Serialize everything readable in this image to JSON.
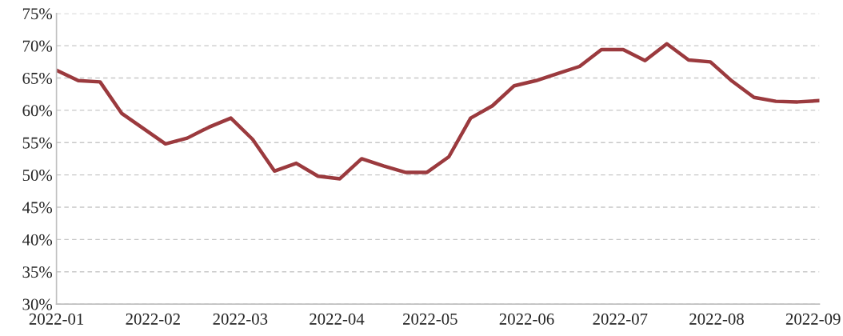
{
  "chart_data": {
    "type": "line",
    "x": [
      "2022-01-01",
      "2022-01-08",
      "2022-01-15",
      "2022-01-22",
      "2022-02-05",
      "2022-02-12",
      "2022-02-19",
      "2022-02-26",
      "2022-03-05",
      "2022-03-12",
      "2022-03-19",
      "2022-03-26",
      "2022-04-02",
      "2022-04-09",
      "2022-04-16",
      "2022-04-23",
      "2022-04-30",
      "2022-05-07",
      "2022-05-14",
      "2022-05-21",
      "2022-05-28",
      "2022-06-04",
      "2022-06-11",
      "2022-06-18",
      "2022-06-25",
      "2022-07-02",
      "2022-07-09",
      "2022-07-16",
      "2022-07-23",
      "2022-07-30",
      "2022-08-06",
      "2022-08-13",
      "2022-08-20",
      "2022-08-27",
      "2022-09-03"
    ],
    "series": [
      {
        "color": "#9b3a3e",
        "values": [
          66.2,
          64.6,
          64.4,
          59.5,
          54.8,
          55.7,
          57.4,
          58.8,
          55.5,
          50.6,
          51.8,
          49.8,
          49.4,
          52.5,
          51.4,
          50.4,
          50.4,
          52.8,
          58.8,
          60.7,
          63.8,
          64.6,
          65.7,
          66.8,
          69.4,
          69.4,
          67.7,
          70.3,
          67.8,
          67.5,
          64.5,
          62.0,
          61.4,
          61.3,
          61.5
        ]
      }
    ],
    "xlim": [
      "2022-01-01",
      "2022-09-03"
    ],
    "xticks": [
      "2022-01",
      "2022-02",
      "2022-03",
      "2022-04",
      "2022-05",
      "2022-06",
      "2022-07",
      "2022-08",
      "2022-09"
    ],
    "ylim": [
      30,
      75
    ],
    "yticks": [
      {
        "value": 30,
        "label": "30%"
      },
      {
        "value": 35,
        "label": "35%"
      },
      {
        "value": 40,
        "label": "40%"
      },
      {
        "value": 45,
        "label": "45%"
      },
      {
        "value": 50,
        "label": "50%"
      },
      {
        "value": 55,
        "label": "55%"
      },
      {
        "value": 60,
        "label": "60%"
      },
      {
        "value": 65,
        "label": "65%"
      },
      {
        "value": 70,
        "label": "70%"
      },
      {
        "value": 75,
        "label": "75%"
      }
    ],
    "grid": "y",
    "line_style": "solid",
    "marker": "none"
  }
}
